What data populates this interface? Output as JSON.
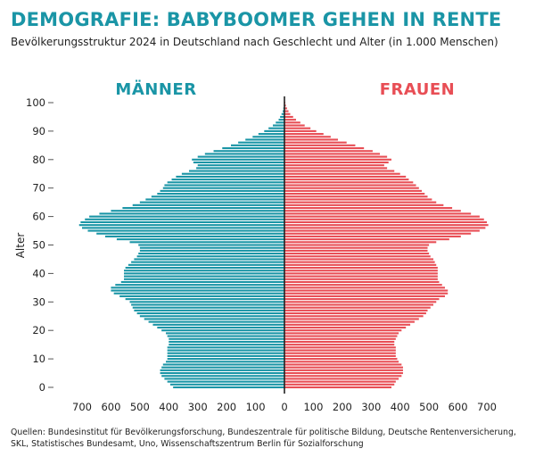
{
  "title": "DEMOGRAFIE: BABYBOOMER GEHEN IN RENTE",
  "subtitle": "Bevölkerungsstruktur 2024 in Deutschland nach Geschlecht und Alter (in 1.000 Menschen)",
  "sources": "Quellen: Bundesinstitut für Bevölkerungsforschung, Bundeszentrale für politische Bildung, Deutsche Rentenversicherung, SKL, Statistisches Bundesamt, Uno, Wissenschaftszentrum Berlin für Sozialforschung",
  "colors": {
    "men": "#1a95a6",
    "women": "#e84e55",
    "axis": "#222222"
  },
  "chart_data": {
    "type": "bar",
    "orientation": "horizontal-pyramid",
    "ylabel": "Alter",
    "ylim": [
      0,
      100
    ],
    "y_ticks": [
      0,
      10,
      20,
      30,
      40,
      50,
      60,
      70,
      80,
      90,
      100
    ],
    "xlim": [
      -720,
      720
    ],
    "x_ticks": [
      700,
      600,
      500,
      400,
      300,
      200,
      100,
      0,
      100,
      200,
      300,
      400,
      500,
      600,
      700
    ],
    "x_tick_values": [
      -700,
      -600,
      -500,
      -400,
      -300,
      -200,
      -100,
      0,
      100,
      200,
      300,
      400,
      500,
      600,
      700
    ],
    "ages": [
      0,
      1,
      2,
      3,
      4,
      5,
      6,
      7,
      8,
      9,
      10,
      11,
      12,
      13,
      14,
      15,
      16,
      17,
      18,
      19,
      20,
      21,
      22,
      23,
      24,
      25,
      26,
      27,
      28,
      29,
      30,
      31,
      32,
      33,
      34,
      35,
      36,
      37,
      38,
      39,
      40,
      41,
      42,
      43,
      44,
      45,
      46,
      47,
      48,
      49,
      50,
      51,
      52,
      53,
      54,
      55,
      56,
      57,
      58,
      59,
      60,
      61,
      62,
      63,
      64,
      65,
      66,
      67,
      68,
      69,
      70,
      71,
      72,
      73,
      74,
      75,
      76,
      77,
      78,
      79,
      80,
      81,
      82,
      83,
      84,
      85,
      86,
      87,
      88,
      89,
      90,
      91,
      92,
      93,
      94,
      95,
      96,
      97,
      98,
      99,
      100
    ],
    "series": [
      {
        "name": "MÄNNER",
        "values": [
          385,
          395,
          405,
          415,
          425,
          430,
          430,
          425,
          420,
          410,
          405,
          405,
          405,
          405,
          405,
          400,
          400,
          400,
          405,
          410,
          425,
          440,
          455,
          470,
          485,
          500,
          510,
          520,
          525,
          530,
          535,
          550,
          570,
          590,
          600,
          600,
          585,
          565,
          555,
          555,
          555,
          555,
          550,
          540,
          530,
          520,
          510,
          505,
          500,
          500,
          505,
          535,
          580,
          620,
          650,
          680,
          700,
          710,
          705,
          690,
          675,
          640,
          600,
          560,
          525,
          500,
          480,
          460,
          440,
          430,
          420,
          415,
          405,
          390,
          375,
          355,
          330,
          305,
          300,
          315,
          320,
          300,
          275,
          245,
          215,
          185,
          160,
          135,
          110,
          90,
          70,
          55,
          40,
          30,
          20,
          15,
          10,
          6,
          4,
          2,
          1
        ]
      },
      {
        "name": "FRAUEN",
        "values": [
          370,
          380,
          385,
          395,
          405,
          410,
          410,
          410,
          405,
          395,
          390,
          385,
          385,
          385,
          385,
          380,
          380,
          385,
          390,
          395,
          405,
          420,
          435,
          450,
          465,
          480,
          490,
          495,
          505,
          515,
          525,
          535,
          555,
          565,
          565,
          555,
          545,
          535,
          530,
          530,
          530,
          530,
          530,
          525,
          520,
          515,
          505,
          500,
          495,
          495,
          500,
          525,
          570,
          610,
          645,
          675,
          695,
          705,
          700,
          690,
          675,
          645,
          610,
          580,
          550,
          525,
          510,
          495,
          485,
          475,
          465,
          455,
          445,
          430,
          420,
          400,
          380,
          355,
          345,
          360,
          370,
          355,
          330,
          305,
          275,
          245,
          215,
          185,
          160,
          135,
          110,
          90,
          70,
          55,
          40,
          30,
          20,
          14,
          9,
          5,
          3
        ]
      }
    ]
  }
}
